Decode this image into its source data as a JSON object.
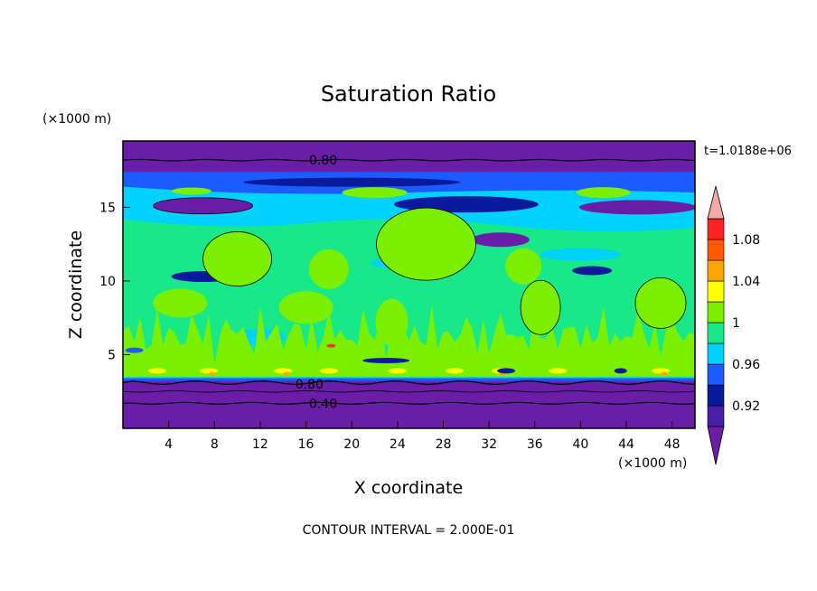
{
  "chart_data": {
    "type": "heatmap",
    "title": "Saturation Ratio",
    "xlabel": "X coordinate",
    "ylabel": "Z coordinate",
    "x_unit": "(×1000 m)",
    "y_unit": "(×1000 m)",
    "xlim": [
      0,
      50
    ],
    "ylim": [
      0,
      19.5
    ],
    "x_ticks": [
      4,
      8,
      12,
      16,
      20,
      24,
      28,
      32,
      36,
      40,
      44,
      48
    ],
    "y_ticks": [
      5,
      10,
      15
    ],
    "time_label": "t=1.0188e+06",
    "footer": "CONTOUR INTERVAL = 2.000E-01",
    "contour_labels": [
      {
        "text": "0.80",
        "x": 17.5,
        "z": 18.2
      },
      {
        "text": "0.80",
        "x": 16.3,
        "z": 3.0
      },
      {
        "text": "0.40",
        "x": 17.5,
        "z": 1.7
      }
    ],
    "colorbar": {
      "tick_labels": [
        "1.08",
        "1.04",
        "1",
        "0.96",
        "0.92"
      ],
      "tick_values": [
        1.08,
        1.04,
        1.0,
        0.96,
        0.92
      ],
      "levels": [
        0.9,
        0.92,
        0.94,
        0.96,
        0.98,
        1.0,
        1.02,
        1.04,
        1.06,
        1.08,
        1.1
      ],
      "colors": [
        "#4a1fa8",
        "#0a1a9c",
        "#1a5cff",
        "#00d2ff",
        "#18e888",
        "#7af000",
        "#ffff00",
        "#ffa500",
        "#ff5a00",
        "#ff2424"
      ],
      "under_color": "#6a1ea8",
      "over_color": "#f5a8a8"
    },
    "field_colors": {
      "dry_band": "#6a1ea8",
      "deep_blue": "#0a1a9c",
      "blue": "#1a5cff",
      "cyan": "#00d2ff",
      "green": "#18e888",
      "lime": "#7af000",
      "yellow": "#ffff00",
      "orange": "#ffa500",
      "red": "#ff3030"
    }
  }
}
